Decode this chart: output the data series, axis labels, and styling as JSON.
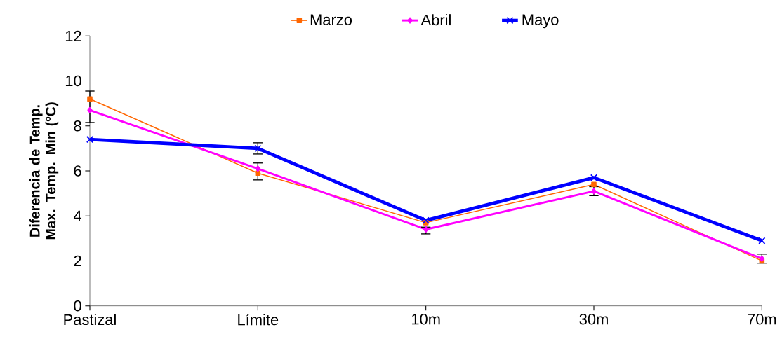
{
  "chart_data": {
    "type": "line",
    "ylabel": "Diferencia de Temp. Max. Temp. Min (ºC)",
    "categories": [
      "Pastizal",
      "Límite",
      "10m",
      "30m",
      "70m"
    ],
    "series": [
      {
        "name": "Marzo",
        "color": "#ff6600",
        "marker": "square",
        "values": [
          9.2,
          5.9,
          3.7,
          5.4,
          2.0
        ],
        "errors": [
          [
            8.15,
            9.55
          ],
          [
            5.6,
            6.35
          ],
          null,
          null,
          null
        ]
      },
      {
        "name": "Abril",
        "color": "#ff00ff",
        "marker": "diamond",
        "values": [
          8.7,
          6.1,
          3.4,
          5.1,
          2.1
        ],
        "errors": [
          null,
          null,
          [
            3.2,
            3.5
          ],
          [
            4.9,
            5.3
          ],
          [
            1.9,
            2.3
          ]
        ]
      },
      {
        "name": "Mayo",
        "color": "#0000ff",
        "marker": "cross",
        "values": [
          7.4,
          7.0,
          3.8,
          5.7,
          2.9
        ],
        "errors": [
          null,
          0.25,
          null,
          null,
          null
        ]
      }
    ],
    "ylim": [
      0,
      12
    ],
    "yticks": [
      0,
      2,
      4,
      6,
      8,
      10,
      12
    ],
    "legend": "top",
    "grid": false
  }
}
